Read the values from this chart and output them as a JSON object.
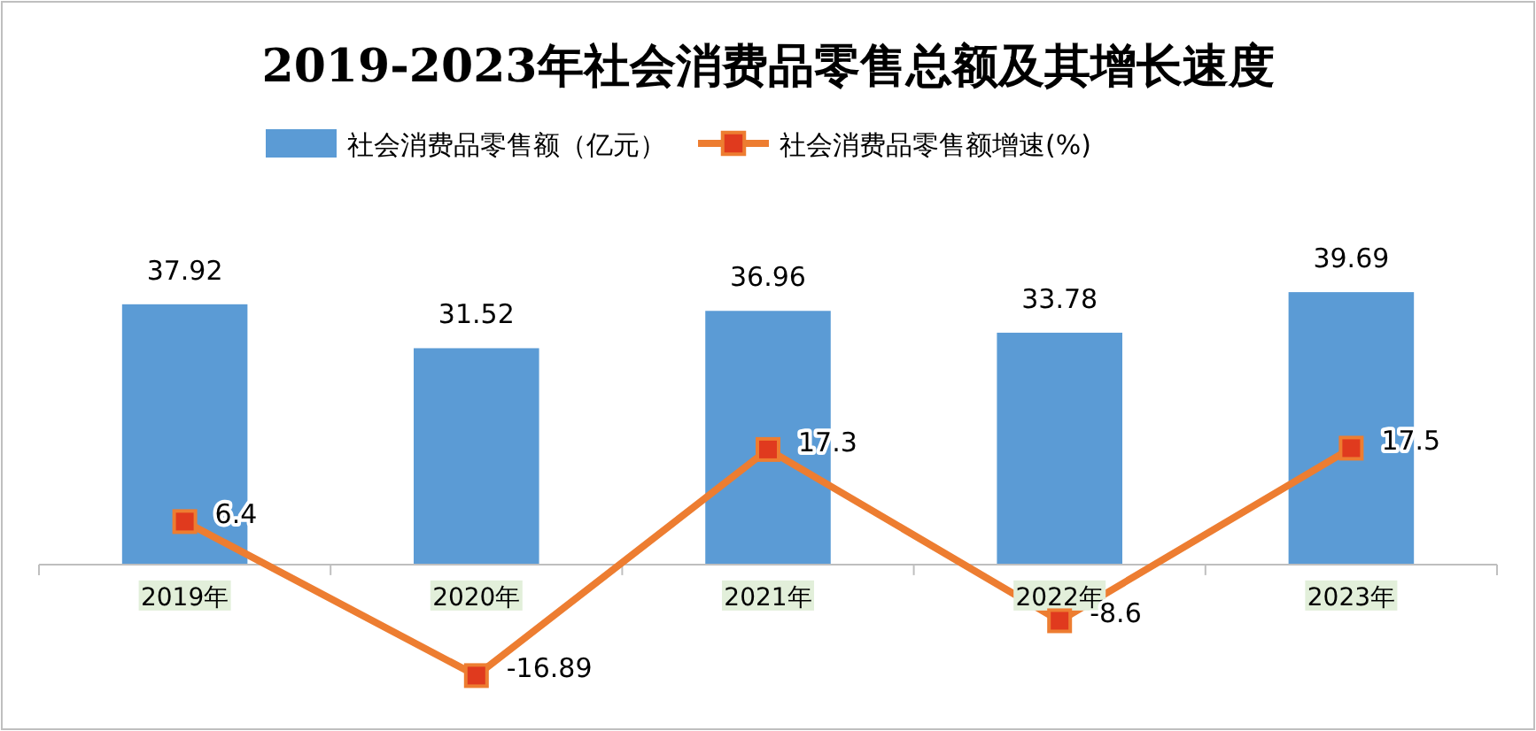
{
  "chart_data": {
    "type": "bar",
    "title": "2019-2023年社会消费品零售总额及其增长速度",
    "categories": [
      "2019年",
      "2020年",
      "2021年",
      "2022年",
      "2023年"
    ],
    "series": [
      {
        "name": "社会消费品零售额（亿元）",
        "color": "#5b9bd5",
        "values": [
          37.92,
          31.52,
          36.96,
          33.78,
          39.69
        ]
      },
      {
        "name": "社会消费品零售额增速(%)",
        "type": "line",
        "axis": "y2",
        "color": "#ed7d31",
        "marker": "square",
        "values": [
          6.4,
          -16.89,
          17.3,
          -8.6,
          17.5
        ]
      }
    ],
    "ylim": [
      -24,
      82
    ],
    "y2lim": [
      -25,
      85
    ],
    "data_labels": true,
    "legend": "top",
    "tick_labels": "x",
    "grid": false
  }
}
